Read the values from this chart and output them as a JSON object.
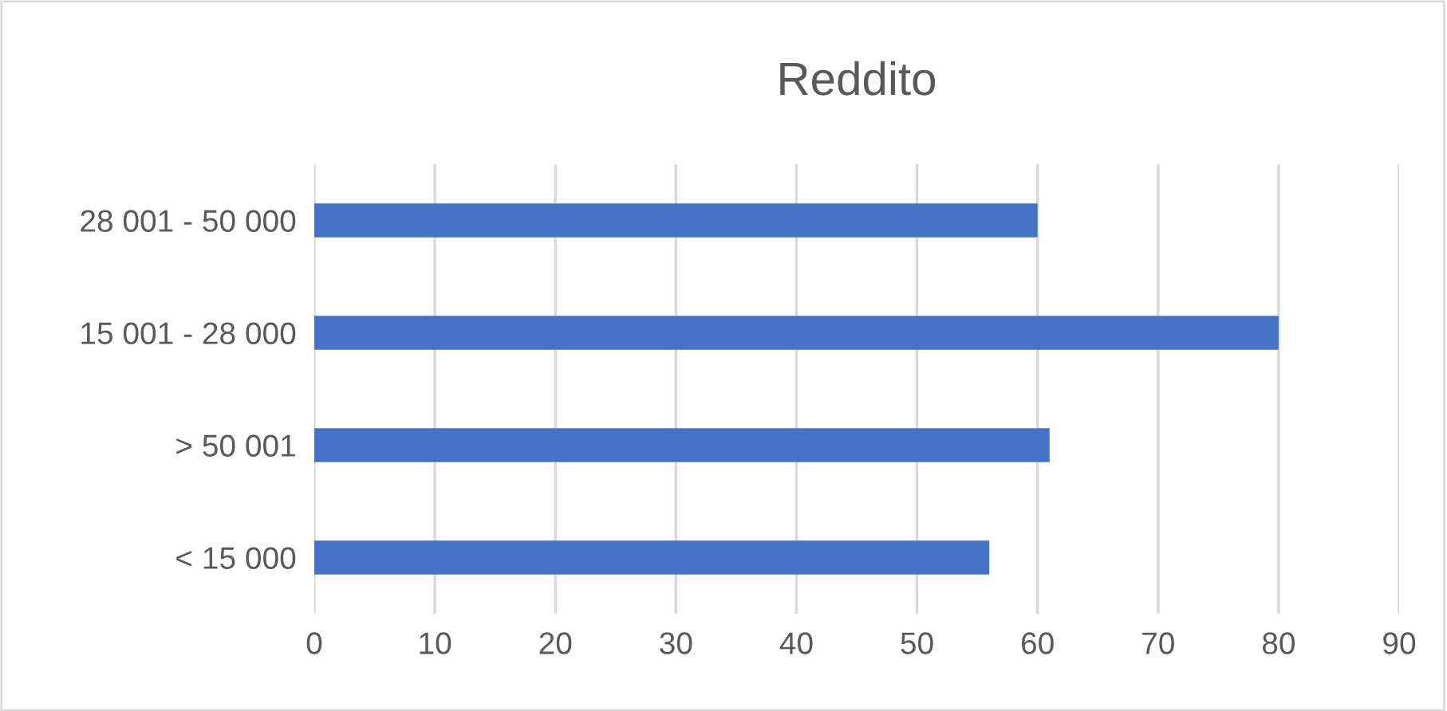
{
  "chart_data": {
    "type": "bar",
    "orientation": "horizontal",
    "title": "Reddito",
    "categories": [
      "28 001 - 50 000",
      "15 001 - 28 000",
      "> 50 001",
      "< 15 000"
    ],
    "values": [
      60,
      80,
      61,
      56
    ],
    "color": "#4472c4",
    "xlim": [
      0,
      90
    ],
    "xticks": [
      0,
      10,
      20,
      30,
      40,
      50,
      60,
      70,
      80,
      90
    ],
    "grid": "x",
    "legend": false
  }
}
